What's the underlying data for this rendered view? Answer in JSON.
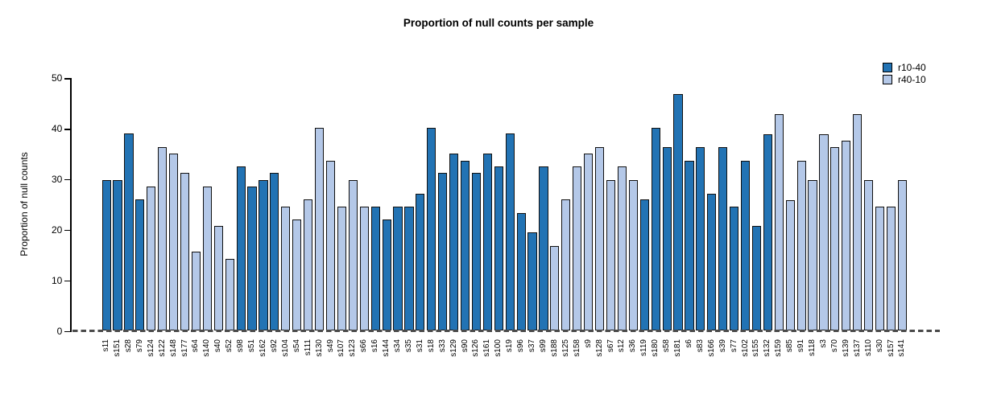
{
  "chart_data": {
    "type": "bar",
    "title": "Proportion of null counts per sample",
    "xlabel": "",
    "ylabel": "Proportion of null counts",
    "ylim": [
      0,
      50
    ],
    "yticks": [
      0,
      10,
      20,
      30,
      40,
      50
    ],
    "grid": false,
    "legend_position": "top-right",
    "series": [
      {
        "name": "r10-40",
        "color": "#2273b4"
      },
      {
        "name": "r40-10",
        "color": "#b4c8e8"
      }
    ],
    "bars": [
      {
        "label": "s11",
        "value": 29.8,
        "series": "r10-40"
      },
      {
        "label": "s151",
        "value": 29.8,
        "series": "r10-40"
      },
      {
        "label": "s28",
        "value": 39.0,
        "series": "r10-40"
      },
      {
        "label": "s79",
        "value": 26.0,
        "series": "r10-40"
      },
      {
        "label": "s124",
        "value": 28.5,
        "series": "r40-10"
      },
      {
        "label": "s122",
        "value": 36.4,
        "series": "r40-10"
      },
      {
        "label": "s148",
        "value": 35.0,
        "series": "r40-10"
      },
      {
        "label": "s177",
        "value": 31.2,
        "series": "r40-10"
      },
      {
        "label": "s64",
        "value": 15.6,
        "series": "r40-10"
      },
      {
        "label": "s140",
        "value": 28.5,
        "series": "r40-10"
      },
      {
        "label": "s40",
        "value": 20.8,
        "series": "r40-10"
      },
      {
        "label": "s52",
        "value": 14.3,
        "series": "r40-10"
      },
      {
        "label": "s98",
        "value": 32.5,
        "series": "r10-40"
      },
      {
        "label": "s51",
        "value": 28.5,
        "series": "r10-40"
      },
      {
        "label": "s162",
        "value": 29.8,
        "series": "r10-40"
      },
      {
        "label": "s92",
        "value": 31.2,
        "series": "r10-40"
      },
      {
        "label": "s104",
        "value": 24.5,
        "series": "r40-10"
      },
      {
        "label": "s54",
        "value": 22.0,
        "series": "r40-10"
      },
      {
        "label": "s111",
        "value": 26.0,
        "series": "r40-10"
      },
      {
        "label": "s130",
        "value": 40.2,
        "series": "r40-10"
      },
      {
        "label": "s49",
        "value": 33.7,
        "series": "r40-10"
      },
      {
        "label": "s107",
        "value": 24.5,
        "series": "r40-10"
      },
      {
        "label": "s123",
        "value": 29.8,
        "series": "r40-10"
      },
      {
        "label": "s66",
        "value": 24.5,
        "series": "r40-10"
      },
      {
        "label": "s16",
        "value": 24.5,
        "series": "r10-40"
      },
      {
        "label": "s144",
        "value": 22.0,
        "series": "r10-40"
      },
      {
        "label": "s34",
        "value": 24.5,
        "series": "r10-40"
      },
      {
        "label": "s35",
        "value": 24.5,
        "series": "r10-40"
      },
      {
        "label": "s31",
        "value": 27.2,
        "series": "r10-40"
      },
      {
        "label": "s18",
        "value": 40.2,
        "series": "r10-40"
      },
      {
        "label": "s33",
        "value": 31.2,
        "series": "r10-40"
      },
      {
        "label": "s129",
        "value": 35.0,
        "series": "r10-40"
      },
      {
        "label": "s90",
        "value": 33.7,
        "series": "r10-40"
      },
      {
        "label": "s126",
        "value": 31.2,
        "series": "r10-40"
      },
      {
        "label": "s161",
        "value": 35.0,
        "series": "r10-40"
      },
      {
        "label": "s100",
        "value": 32.5,
        "series": "r10-40"
      },
      {
        "label": "s19",
        "value": 39.0,
        "series": "r10-40"
      },
      {
        "label": "s96",
        "value": 23.3,
        "series": "r10-40"
      },
      {
        "label": "s37",
        "value": 19.5,
        "series": "r10-40"
      },
      {
        "label": "s99",
        "value": 32.5,
        "series": "r10-40"
      },
      {
        "label": "s188",
        "value": 16.8,
        "series": "r40-10"
      },
      {
        "label": "s125",
        "value": 26.0,
        "series": "r40-10"
      },
      {
        "label": "s158",
        "value": 32.5,
        "series": "r40-10"
      },
      {
        "label": "s9",
        "value": 35.0,
        "series": "r40-10"
      },
      {
        "label": "s128",
        "value": 36.4,
        "series": "r40-10"
      },
      {
        "label": "s67",
        "value": 29.8,
        "series": "r40-10"
      },
      {
        "label": "s12",
        "value": 32.5,
        "series": "r40-10"
      },
      {
        "label": "s36",
        "value": 29.8,
        "series": "r40-10"
      },
      {
        "label": "s119",
        "value": 26.0,
        "series": "r10-40"
      },
      {
        "label": "s180",
        "value": 40.2,
        "series": "r10-40"
      },
      {
        "label": "s58",
        "value": 36.4,
        "series": "r10-40"
      },
      {
        "label": "s181",
        "value": 46.8,
        "series": "r10-40"
      },
      {
        "label": "s6",
        "value": 33.7,
        "series": "r10-40"
      },
      {
        "label": "s83",
        "value": 36.4,
        "series": "r10-40"
      },
      {
        "label": "s166",
        "value": 27.2,
        "series": "r10-40"
      },
      {
        "label": "s39",
        "value": 36.4,
        "series": "r10-40"
      },
      {
        "label": "s77",
        "value": 24.5,
        "series": "r10-40"
      },
      {
        "label": "s102",
        "value": 33.7,
        "series": "r10-40"
      },
      {
        "label": "s155",
        "value": 20.8,
        "series": "r10-40"
      },
      {
        "label": "s132",
        "value": 38.9,
        "series": "r10-40"
      },
      {
        "label": "s159",
        "value": 42.8,
        "series": "r40-10"
      },
      {
        "label": "s85",
        "value": 25.9,
        "series": "r40-10"
      },
      {
        "label": "s91",
        "value": 33.7,
        "series": "r40-10"
      },
      {
        "label": "s118",
        "value": 29.8,
        "series": "r40-10"
      },
      {
        "label": "s3",
        "value": 38.9,
        "series": "r40-10"
      },
      {
        "label": "s70",
        "value": 36.4,
        "series": "r40-10"
      },
      {
        "label": "s139",
        "value": 37.6,
        "series": "r40-10"
      },
      {
        "label": "s137",
        "value": 42.8,
        "series": "r40-10"
      },
      {
        "label": "s110",
        "value": 29.8,
        "series": "r40-10"
      },
      {
        "label": "s30",
        "value": 24.5,
        "series": "r40-10"
      },
      {
        "label": "s157",
        "value": 24.5,
        "series": "r40-10"
      },
      {
        "label": "s141",
        "value": 29.8,
        "series": "r40-10"
      }
    ]
  }
}
